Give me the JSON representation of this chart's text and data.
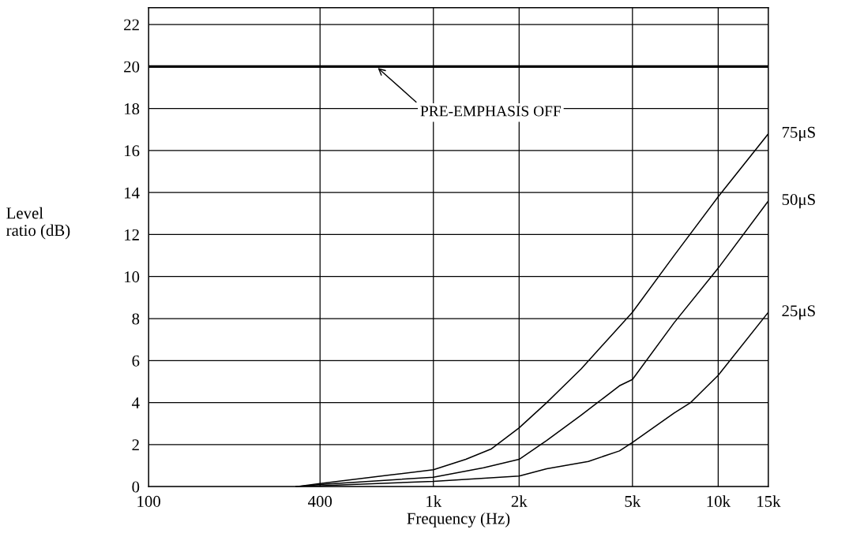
{
  "chart_data": {
    "type": "line",
    "xlabel": "Frequency (Hz)",
    "ylabel": "Level\nratio (dB)",
    "log": "x",
    "xlim": [
      100,
      15000
    ],
    "xticks": [
      {
        "value": 100,
        "label": "100"
      },
      {
        "value": 400,
        "label": "400"
      },
      {
        "value": 1000,
        "label": "1k"
      },
      {
        "value": 2000,
        "label": "2k"
      },
      {
        "value": 5000,
        "label": "5k"
      },
      {
        "value": 10000,
        "label": "10k"
      },
      {
        "value": 15000,
        "label": "15k"
      }
    ],
    "ylim": [
      0,
      22.8
    ],
    "yticks": [
      0,
      2,
      4,
      6,
      8,
      10,
      12,
      14,
      16,
      18,
      20,
      22
    ],
    "grid": true,
    "legend": false,
    "marker": "none",
    "line_style": "solid",
    "series": [
      {
        "name": "75μS",
        "color": "#000000",
        "x": [
          330,
          400,
          700,
          1000,
          1300,
          1600,
          2000,
          2500,
          3300,
          5000,
          7000,
          10000,
          15000
        ],
        "values": [
          0,
          0.15,
          0.55,
          0.8,
          1.3,
          1.8,
          2.8,
          4.0,
          5.6,
          8.3,
          11,
          13.8,
          16.8
        ]
      },
      {
        "name": "50μS",
        "color": "#000000",
        "x": [
          330,
          400,
          1000,
          1500,
          2000,
          2500,
          3300,
          4500,
          5000,
          7000,
          10000,
          15000
        ],
        "values": [
          0,
          0.1,
          0.45,
          0.9,
          1.3,
          2.2,
          3.4,
          4.8,
          5.1,
          7.8,
          10.4,
          13.6
        ]
      },
      {
        "name": "25μS",
        "color": "#000000",
        "x": [
          330,
          1000,
          2000,
          2500,
          3500,
          4500,
          5000,
          7000,
          8000,
          10000,
          15000
        ],
        "values": [
          0,
          0.25,
          0.5,
          0.85,
          1.2,
          1.7,
          2.1,
          3.5,
          4.0,
          5.3,
          8.3
        ]
      }
    ],
    "ref_lines": [
      {
        "axis": "y",
        "value": 20,
        "label": null,
        "color": "#000000"
      }
    ],
    "annotations": [
      {
        "text": "PRE-EMPHASIS OFF",
        "x": 630,
        "y": 20
      }
    ]
  }
}
